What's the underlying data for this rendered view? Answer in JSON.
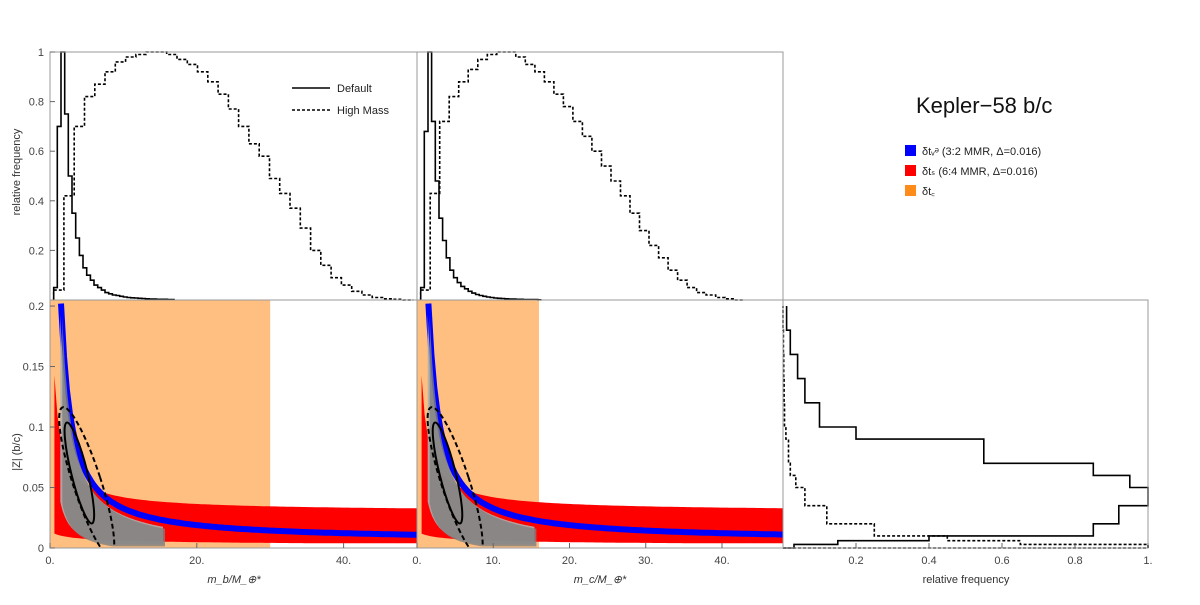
{
  "chart_data": {
    "type": "corner-plot",
    "title": "Kepler−58 b/c",
    "legend_top": [
      {
        "name": "Default",
        "style": "solid"
      },
      {
        "name": "High Mass",
        "style": "dashed"
      }
    ],
    "legend_regions": [
      {
        "name": "δtᵥᵊ (3:2 MMR, Δ=0.016)",
        "color": "#0000ff"
      },
      {
        "name": "δtₛ (6:4 MMR, Δ=0.016)",
        "color": "#ff0000"
      },
      {
        "name": "δt꜀",
        "color": "#ff8c1a"
      }
    ],
    "colors": {
      "blue": "#0000ff",
      "red": "#ff0000",
      "orange": "#ffbf80",
      "gray": "#808080",
      "gray_light": "#b0b0b0"
    },
    "hist_mb": {
      "xlim": [
        0,
        50
      ],
      "ylim": [
        0,
        1
      ],
      "ylabel": "relative frequency",
      "yticks": [
        "0.2",
        "0.4",
        "0.6",
        "0.8",
        "1"
      ],
      "default": {
        "bin_width": 0.5,
        "x_start": 0.5,
        "values": [
          0.05,
          0.7,
          1.0,
          0.75,
          0.5,
          0.35,
          0.25,
          0.18,
          0.13,
          0.1,
          0.08,
          0.06,
          0.05,
          0.04,
          0.03,
          0.025,
          0.02,
          0.018,
          0.015,
          0.012,
          0.01,
          0.009,
          0.008,
          0.007,
          0.006,
          0.005,
          0.004,
          0.004,
          0.003,
          0.003,
          0.003,
          0.002,
          0.002
        ]
      },
      "high_mass": {
        "bin_width": 1.4,
        "x_start": 0.5,
        "values": [
          0.04,
          0.42,
          0.7,
          0.82,
          0.87,
          0.92,
          0.96,
          0.98,
          0.99,
          1.0,
          1.0,
          0.99,
          0.97,
          0.95,
          0.92,
          0.88,
          0.83,
          0.77,
          0.7,
          0.63,
          0.58,
          0.49,
          0.43,
          0.37,
          0.29,
          0.2,
          0.14,
          0.09,
          0.06,
          0.035,
          0.02,
          0.01,
          0.005,
          0.003,
          0.0
        ]
      }
    },
    "hist_mc": {
      "xlim": [
        0,
        50
      ],
      "ylim": [
        0,
        1
      ],
      "default": {
        "bin_width": 0.5,
        "x_start": 0.5,
        "values": [
          0.05,
          0.68,
          1.0,
          0.72,
          0.48,
          0.33,
          0.24,
          0.17,
          0.12,
          0.09,
          0.07,
          0.055,
          0.045,
          0.035,
          0.028,
          0.022,
          0.018,
          0.015,
          0.012,
          0.01,
          0.008,
          0.007,
          0.006,
          0.005,
          0.004,
          0.004,
          0.003,
          0.003,
          0.002,
          0.002,
          0.002,
          0.002,
          0.001
        ]
      },
      "high_mass": {
        "bin_width": 1.3,
        "x_start": 0.5,
        "values": [
          0.04,
          0.43,
          0.72,
          0.82,
          0.88,
          0.93,
          0.97,
          0.99,
          1.0,
          1.0,
          0.98,
          0.95,
          0.92,
          0.88,
          0.83,
          0.78,
          0.72,
          0.66,
          0.6,
          0.54,
          0.48,
          0.42,
          0.35,
          0.28,
          0.22,
          0.17,
          0.12,
          0.08,
          0.05,
          0.03,
          0.02,
          0.01,
          0.005,
          0.0
        ]
      }
    },
    "scatter_mb": {
      "xlabel": "m_b/M_⊕*",
      "ylabel": "|Z| (b/c)",
      "xlim": [
        0,
        50
      ],
      "ylim": [
        0,
        0.205
      ],
      "xticks": [
        "0.",
        "20.",
        "40."
      ],
      "yticks": [
        "0",
        "0.05",
        "0.1",
        "0.15",
        "0.2"
      ],
      "orange_xmax": 30,
      "red_upper_coef": 1.55,
      "red_upper_exp": 0.92,
      "red_lower_coef": 0.028,
      "red_lower_exp": 0.35
    },
    "scatter_mc": {
      "xlabel": "m_c/M_⊕*",
      "xlim": [
        0,
        48
      ],
      "xticks": [
        "0.",
        "10.",
        "20.",
        "30.",
        "40."
      ],
      "orange_xmax": 16
    },
    "hist_z": {
      "xlabel": "relative frequency",
      "xticks": [
        "0.2",
        "0.4",
        "0.6",
        "0.8",
        "1."
      ],
      "default": {
        "z_edges": [
          0,
          0.003,
          0.006,
          0.01,
          0.02,
          0.035,
          0.05,
          0.06,
          0.07,
          0.09,
          0.1,
          0.12,
          0.14,
          0.16,
          0.18,
          0.2
        ],
        "values": [
          0.03,
          0.15,
          0.4,
          0.85,
          0.92,
          1.0,
          0.95,
          0.85,
          0.55,
          0.2,
          0.1,
          0.06,
          0.04,
          0.02,
          0.01
        ]
      },
      "high_mass": {
        "z_edges": [
          0,
          0.003,
          0.006,
          0.01,
          0.02,
          0.035,
          0.05,
          0.06,
          0.07,
          0.09,
          0.1,
          0.12,
          0.14,
          0.16,
          0.18,
          0.2
        ],
        "values": [
          1.0,
          0.65,
          0.45,
          0.25,
          0.12,
          0.06,
          0.035,
          0.02,
          0.015,
          0.008,
          0.004,
          0.003,
          0.002,
          0.001,
          0.0
        ]
      }
    }
  }
}
